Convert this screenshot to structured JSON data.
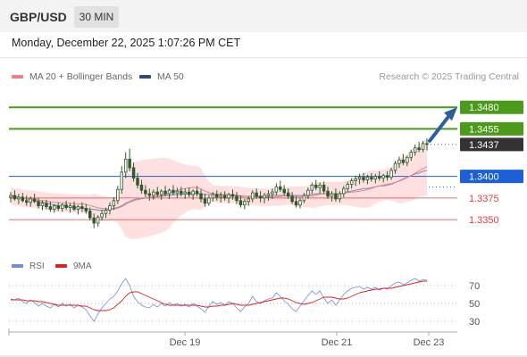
{
  "header": {
    "symbol": "GBP/USD",
    "timeframe_button": "30 MIN"
  },
  "timestamp": "Monday, December 22, 2025 1:07:26 PM CET",
  "legend": {
    "ma20_label": "MA 20 + Bollinger Bands",
    "ma50_label": "MA 50",
    "credit": "Research © 2025 Trading Central"
  },
  "sub_legend": {
    "rsi_label": "RSI",
    "ma9_label": "9MA"
  },
  "colors": {
    "candle": "#2d5a2d",
    "ma20": "#f08080",
    "bollinger_fill": "#ffe0e0",
    "ma50": "#2a4a80",
    "ma50_line": "#7a9cc8",
    "target_green": "#4c9a1a",
    "pivot_blue": "#1b5fd9",
    "support_red": "#d94040",
    "last_price_box": "#333333",
    "rsi_line": "#6f8fd8",
    "rsi_ma_line": "#dd2222",
    "arrow": "#2d5f9f"
  },
  "chart_data": [
    {
      "type": "candlestick",
      "ylim": [
        1.3315,
        1.3505
      ],
      "x_tick_labels": [
        "Dec 19",
        "Dec 21",
        "Dec 23"
      ],
      "levels": [
        {
          "value": 1.348,
          "label": "1.3480",
          "kind": "target"
        },
        {
          "value": 1.3455,
          "label": "1.3455",
          "kind": "target"
        },
        {
          "value": 1.3437,
          "label": "1.3437",
          "kind": "last"
        },
        {
          "value": 1.34,
          "label": "1.3400",
          "kind": "pivot"
        },
        {
          "value": 1.3375,
          "label": "1.3375",
          "kind": "support"
        },
        {
          "value": 1.335,
          "label": "1.3350",
          "kind": "support"
        }
      ],
      "ohlc": [
        [
          1.3376,
          1.3382,
          1.337,
          1.3378
        ],
        [
          1.3378,
          1.3384,
          1.3372,
          1.3374
        ],
        [
          1.3374,
          1.338,
          1.3368,
          1.3376
        ],
        [
          1.3376,
          1.3381,
          1.337,
          1.3372
        ],
        [
          1.3372,
          1.3378,
          1.3366,
          1.337
        ],
        [
          1.337,
          1.3377,
          1.3365,
          1.3374
        ],
        [
          1.3374,
          1.338,
          1.3369,
          1.3371
        ],
        [
          1.3371,
          1.3375,
          1.3363,
          1.3366
        ],
        [
          1.3366,
          1.3372,
          1.3361,
          1.3369
        ],
        [
          1.3369,
          1.3373,
          1.3362,
          1.3365
        ],
        [
          1.3365,
          1.3371,
          1.3359,
          1.3362
        ],
        [
          1.3362,
          1.3368,
          1.3358,
          1.3366
        ],
        [
          1.3366,
          1.337,
          1.336,
          1.3363
        ],
        [
          1.3363,
          1.3369,
          1.3359,
          1.3367
        ],
        [
          1.3367,
          1.3372,
          1.3361,
          1.3364
        ],
        [
          1.3364,
          1.3369,
          1.3358,
          1.3366
        ],
        [
          1.3366,
          1.3371,
          1.336,
          1.3362
        ],
        [
          1.3362,
          1.3367,
          1.3356,
          1.3365
        ],
        [
          1.3365,
          1.337,
          1.3359,
          1.3363
        ],
        [
          1.3363,
          1.3368,
          1.3357,
          1.336
        ],
        [
          1.336,
          1.3364,
          1.3349,
          1.3352
        ],
        [
          1.3352,
          1.3357,
          1.334,
          1.3346
        ],
        [
          1.3346,
          1.3355,
          1.3342,
          1.3353
        ],
        [
          1.3353,
          1.3361,
          1.3349,
          1.3357
        ],
        [
          1.3357,
          1.3364,
          1.3352,
          1.3361
        ],
        [
          1.3361,
          1.337,
          1.3356,
          1.3366
        ],
        [
          1.3366,
          1.3376,
          1.3361,
          1.3372
        ],
        [
          1.3372,
          1.3389,
          1.3368,
          1.3385
        ],
        [
          1.3385,
          1.3412,
          1.338,
          1.3405
        ],
        [
          1.3405,
          1.3428,
          1.3398,
          1.342
        ],
        [
          1.342,
          1.3432,
          1.3406,
          1.341
        ],
        [
          1.341,
          1.3416,
          1.3394,
          1.3398
        ],
        [
          1.3398,
          1.3404,
          1.3386,
          1.339
        ],
        [
          1.339,
          1.3396,
          1.338,
          1.3384
        ],
        [
          1.3384,
          1.339,
          1.3376,
          1.338
        ],
        [
          1.338,
          1.3386,
          1.3372,
          1.3378
        ],
        [
          1.3378,
          1.3385,
          1.3373,
          1.3382
        ],
        [
          1.3382,
          1.3388,
          1.3376,
          1.3379
        ],
        [
          1.3379,
          1.3385,
          1.3373,
          1.3383
        ],
        [
          1.3383,
          1.3389,
          1.3377,
          1.338
        ],
        [
          1.338,
          1.3386,
          1.3374,
          1.3384
        ],
        [
          1.3384,
          1.339,
          1.3378,
          1.3381
        ],
        [
          1.3381,
          1.3387,
          1.3375,
          1.3383
        ],
        [
          1.3383,
          1.3388,
          1.3377,
          1.338
        ],
        [
          1.338,
          1.3386,
          1.3374,
          1.3382
        ],
        [
          1.3382,
          1.3387,
          1.3376,
          1.3379
        ],
        [
          1.3379,
          1.3385,
          1.3373,
          1.3383
        ],
        [
          1.3383,
          1.3389,
          1.3377,
          1.338
        ],
        [
          1.338,
          1.3385,
          1.337,
          1.3374
        ],
        [
          1.3374,
          1.338,
          1.3365,
          1.3369
        ],
        [
          1.3369,
          1.3378,
          1.3366,
          1.3375
        ],
        [
          1.3375,
          1.3382,
          1.3371,
          1.3379
        ],
        [
          1.3379,
          1.3384,
          1.3372,
          1.3376
        ],
        [
          1.3376,
          1.3382,
          1.337,
          1.3378
        ],
        [
          1.3378,
          1.3383,
          1.3372,
          1.3375
        ],
        [
          1.3375,
          1.3381,
          1.3369,
          1.3379
        ],
        [
          1.3379,
          1.3385,
          1.3373,
          1.3377
        ],
        [
          1.3377,
          1.3382,
          1.3368,
          1.3372
        ],
        [
          1.3372,
          1.3378,
          1.3364,
          1.3367
        ],
        [
          1.3367,
          1.3374,
          1.3362,
          1.3371
        ],
        [
          1.3371,
          1.3377,
          1.3366,
          1.3374
        ],
        [
          1.3374,
          1.3384,
          1.337,
          1.3381
        ],
        [
          1.3381,
          1.3386,
          1.3374,
          1.3377
        ],
        [
          1.3377,
          1.3383,
          1.337,
          1.3375
        ],
        [
          1.3375,
          1.3381,
          1.3369,
          1.3378
        ],
        [
          1.3378,
          1.3384,
          1.3372,
          1.338
        ],
        [
          1.338,
          1.3386,
          1.3374,
          1.3382
        ],
        [
          1.3382,
          1.3392,
          1.3378,
          1.3388
        ],
        [
          1.3388,
          1.3395,
          1.3382,
          1.3385
        ],
        [
          1.3385,
          1.339,
          1.3378,
          1.3381
        ],
        [
          1.3381,
          1.3386,
          1.3374,
          1.3377
        ],
        [
          1.3377,
          1.3382,
          1.3368,
          1.3371
        ],
        [
          1.3371,
          1.3377,
          1.3364,
          1.3367
        ],
        [
          1.3367,
          1.3375,
          1.3363,
          1.3372
        ],
        [
          1.3372,
          1.3381,
          1.3369,
          1.3378
        ],
        [
          1.3378,
          1.3387,
          1.3374,
          1.3384
        ],
        [
          1.3384,
          1.3393,
          1.338,
          1.339
        ],
        [
          1.339,
          1.3396,
          1.3384,
          1.3387
        ],
        [
          1.3387,
          1.3393,
          1.338,
          1.339
        ],
        [
          1.339,
          1.3394,
          1.338,
          1.3383
        ],
        [
          1.3383,
          1.3388,
          1.3374,
          1.3377
        ],
        [
          1.3377,
          1.3383,
          1.3371,
          1.338
        ],
        [
          1.338,
          1.3386,
          1.3371,
          1.3374
        ],
        [
          1.3374,
          1.3383,
          1.337,
          1.338
        ],
        [
          1.338,
          1.3389,
          1.3376,
          1.3386
        ],
        [
          1.3386,
          1.3394,
          1.3382,
          1.3391
        ],
        [
          1.3391,
          1.3398,
          1.3386,
          1.3395
        ],
        [
          1.3395,
          1.3401,
          1.3389,
          1.3397
        ],
        [
          1.3397,
          1.3403,
          1.3391,
          1.3399
        ],
        [
          1.3399,
          1.3404,
          1.3393,
          1.3396
        ],
        [
          1.3396,
          1.3402,
          1.3391,
          1.3399
        ],
        [
          1.3399,
          1.3404,
          1.3394,
          1.3397
        ],
        [
          1.3397,
          1.3403,
          1.3392,
          1.34
        ],
        [
          1.34,
          1.3406,
          1.3395,
          1.3398
        ],
        [
          1.3398,
          1.3403,
          1.3393,
          1.3401
        ],
        [
          1.3401,
          1.3406,
          1.3395,
          1.3399
        ],
        [
          1.3399,
          1.341,
          1.3396,
          1.3407
        ],
        [
          1.3407,
          1.3418,
          1.3403,
          1.3415
        ],
        [
          1.3415,
          1.3423,
          1.341,
          1.3419
        ],
        [
          1.3419,
          1.3426,
          1.3413,
          1.3416
        ],
        [
          1.3416,
          1.3424,
          1.3412,
          1.3422
        ],
        [
          1.3422,
          1.3431,
          1.3418,
          1.3428
        ],
        [
          1.3428,
          1.3437,
          1.3424,
          1.3433
        ],
        [
          1.3433,
          1.344,
          1.3428,
          1.3431
        ],
        [
          1.3431,
          1.3441,
          1.3428,
          1.3438
        ],
        [
          1.3438,
          1.3444,
          1.343,
          1.3437
        ]
      ],
      "ma50": [
        1.3378,
        1.3377,
        1.3376,
        1.3375,
        1.3374,
        1.3373,
        1.3372,
        1.3371,
        1.337,
        1.3369,
        1.3368,
        1.3367,
        1.3366,
        1.3366,
        1.3365,
        1.3365,
        1.3364,
        1.3364,
        1.3363,
        1.3363,
        1.3362,
        1.3362,
        1.3361,
        1.3361,
        1.3361,
        1.3362,
        1.3363,
        1.3364,
        1.3366,
        1.3369,
        1.3371,
        1.3373,
        1.3374,
        1.3375,
        1.3375,
        1.3376,
        1.3376,
        1.3377,
        1.3377,
        1.3378,
        1.3378,
        1.3379,
        1.3379,
        1.3379,
        1.338,
        1.338,
        1.338,
        1.338,
        1.338,
        1.3379,
        1.3379,
        1.3379,
        1.3379,
        1.3379,
        1.3379,
        1.3378,
        1.3378,
        1.3378,
        1.3377,
        1.3377,
        1.3377,
        1.3377,
        1.3377,
        1.3377,
        1.3377,
        1.3377,
        1.3378,
        1.3378,
        1.3378,
        1.3378,
        1.3378,
        1.3378,
        1.3378,
        1.3378,
        1.3378,
        1.3379,
        1.3379,
        1.338,
        1.338,
        1.338,
        1.338,
        1.338,
        1.338,
        1.338,
        1.3381,
        1.3382,
        1.3383,
        1.3384,
        1.3385,
        1.3386,
        1.3386,
        1.3387,
        1.3388,
        1.3389,
        1.3389,
        1.339,
        1.3391,
        1.3393,
        1.3395,
        1.3397,
        1.3399,
        1.3401,
        1.3403,
        1.3404,
        1.3406,
        1.3407
      ]
    },
    {
      "type": "line",
      "name": "RSI",
      "y_tick_labels": [
        "70",
        "50",
        "30"
      ],
      "ylim": [
        20,
        85
      ],
      "series": [
        {
          "name": "RSI",
          "values": [
            55,
            54,
            56,
            52,
            50,
            54,
            51,
            47,
            50,
            47,
            45,
            49,
            46,
            50,
            47,
            49,
            45,
            48,
            46,
            43,
            36,
            30,
            38,
            45,
            50,
            55,
            58,
            64,
            72,
            78,
            70,
            58,
            52,
            48,
            46,
            45,
            49,
            46,
            50,
            47,
            51,
            48,
            50,
            47,
            49,
            46,
            50,
            47,
            44,
            40,
            47,
            52,
            49,
            51,
            48,
            52,
            50,
            45,
            41,
            46,
            50,
            58,
            52,
            50,
            53,
            55,
            56,
            62,
            58,
            53,
            49,
            44,
            41,
            47,
            53,
            59,
            64,
            60,
            64,
            56,
            50,
            54,
            48,
            54,
            60,
            64,
            67,
            68,
            69,
            66,
            68,
            66,
            68,
            65,
            67,
            66,
            70,
            73,
            74,
            71,
            73,
            76,
            78,
            75,
            77,
            76
          ]
        },
        {
          "name": "9MA",
          "values": [
            54,
            54,
            54,
            54,
            53,
            53,
            53,
            52,
            52,
            51,
            50,
            49,
            48,
            48,
            48,
            48,
            48,
            48,
            47,
            47,
            45,
            43,
            42,
            42,
            42,
            43,
            45,
            49,
            53,
            58,
            62,
            63,
            63,
            61,
            59,
            57,
            55,
            53,
            51,
            49,
            48,
            48,
            48,
            48,
            48,
            48,
            48,
            48,
            47,
            46,
            46,
            47,
            47,
            48,
            48,
            49,
            50,
            49,
            48,
            48,
            48,
            49,
            50,
            51,
            52,
            53,
            54,
            55,
            56,
            56,
            55,
            53,
            51,
            50,
            49,
            50,
            51,
            53,
            55,
            57,
            57,
            57,
            56,
            55,
            55,
            56,
            58,
            60,
            62,
            63,
            64,
            65,
            66,
            66,
            67,
            67,
            67,
            68,
            69,
            70,
            71,
            72,
            73,
            74,
            75,
            75
          ]
        }
      ]
    }
  ]
}
